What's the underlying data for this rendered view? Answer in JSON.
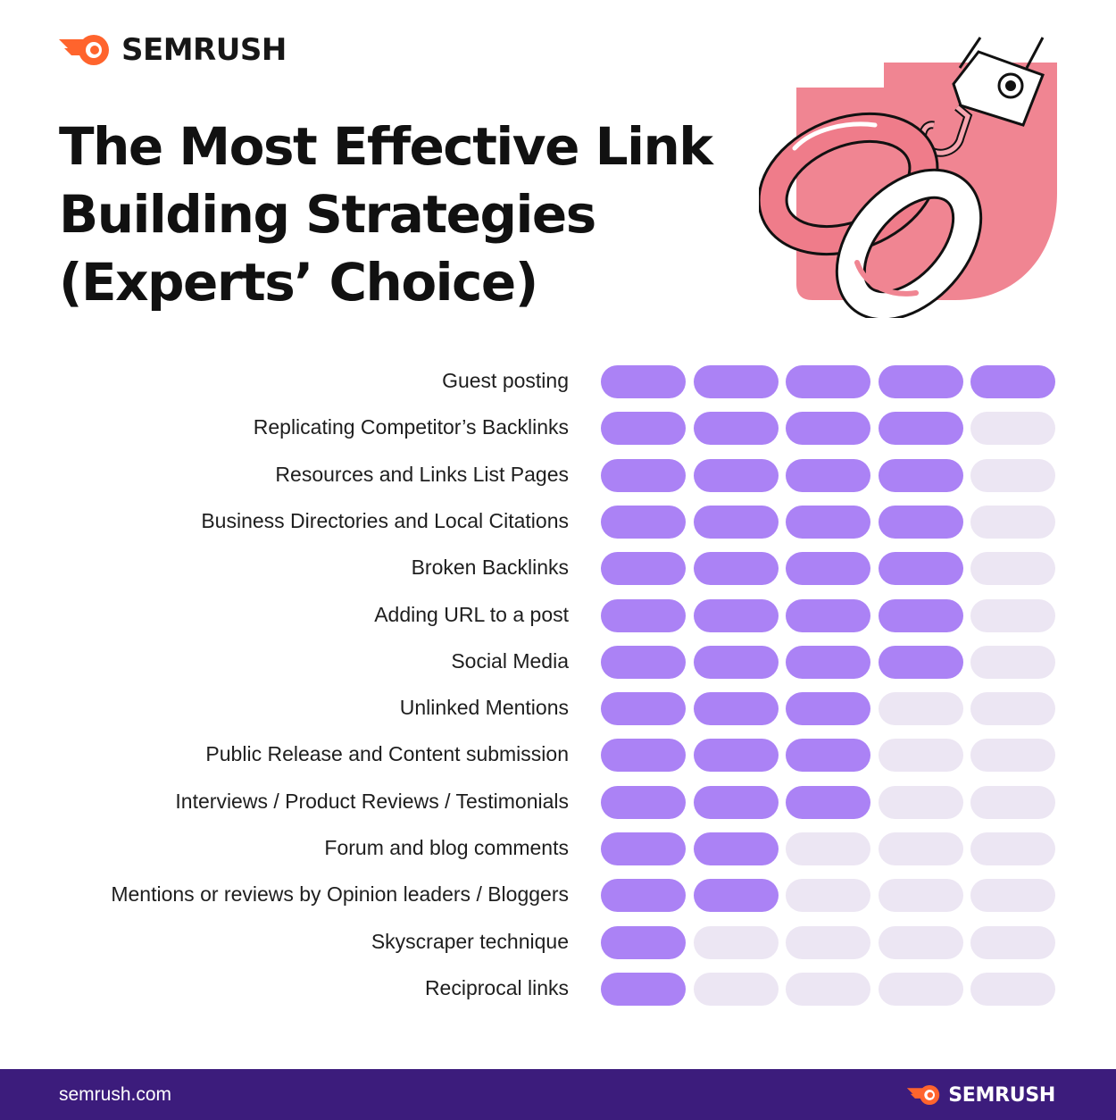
{
  "brand": {
    "name": "SEMRUSH",
    "logo_icon": "semrush-fire-icon",
    "accent": "#ff642d"
  },
  "title_lines": [
    "The Most Effective Link",
    "Building Strategies",
    "(Experts’ Choice)"
  ],
  "illustration": {
    "icon": "chain-link-hook-icon",
    "color": "#f08592"
  },
  "colors": {
    "filled": "#ab82f5",
    "empty": "#ece6f3",
    "footer": "#3c1c7c"
  },
  "chart_data": {
    "type": "rating",
    "title": "The Most Effective Link Building Strategies (Experts’ Choice)",
    "max": 5,
    "categories": [
      "Guest posting",
      "Replicating Competitor’s Backlinks",
      "Resources and Links List Pages",
      "Business Directories and Local Citations",
      "Broken Backlinks",
      "Adding URL to a post",
      "Social Media",
      "Unlinked Mentions",
      "Public Release and Content submission",
      "Interviews / Product Reviews / Testimonials",
      "Forum and blog comments",
      "Mentions or reviews by Opinion leaders / Bloggers",
      "Skyscraper technique",
      "Reciprocal links"
    ],
    "values": [
      5,
      4,
      4,
      4,
      4,
      4,
      4,
      3,
      3,
      3,
      2,
      2,
      1,
      1
    ]
  },
  "footer": {
    "url": "semrush.com",
    "brand": "SEMRUSH"
  }
}
